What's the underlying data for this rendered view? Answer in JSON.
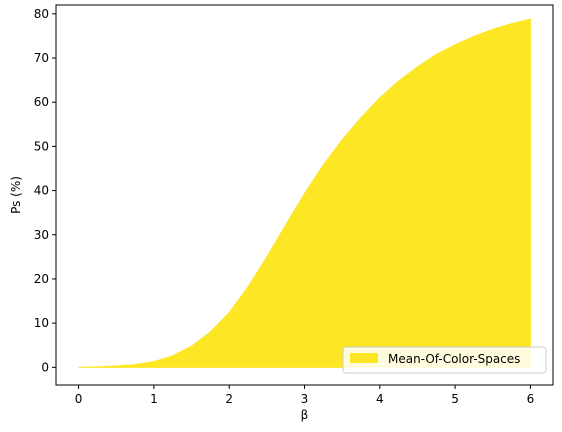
{
  "chart_data": {
    "type": "area",
    "xlabel": "β",
    "ylabel": "Ps (%)",
    "xlim": [
      -0.3,
      6.3
    ],
    "ylim": [
      -4,
      82
    ],
    "xticks": [
      "0",
      "1",
      "2",
      "3",
      "4",
      "5",
      "6"
    ],
    "yticks": [
      "0",
      "10",
      "20",
      "30",
      "40",
      "50",
      "60",
      "70",
      "80"
    ],
    "grid": false,
    "legend_position": "bottom-right",
    "series": [
      {
        "name": "Mean-Of-Color-Spaces",
        "color": "#fde725",
        "x": [
          0,
          0.25,
          0.5,
          0.75,
          1.0,
          1.25,
          1.5,
          1.75,
          2.0,
          2.25,
          2.5,
          2.75,
          3.0,
          3.25,
          3.5,
          3.75,
          4.0,
          4.25,
          4.5,
          4.75,
          5.0,
          5.25,
          5.5,
          5.75,
          6.0
        ],
        "values": [
          0.0,
          0.1,
          0.3,
          0.6,
          1.3,
          2.6,
          4.8,
          8.0,
          12.4,
          18.2,
          25.0,
          32.2,
          39.3,
          45.8,
          51.5,
          56.5,
          61.0,
          64.8,
          68.0,
          70.8,
          73.0,
          74.9,
          76.5,
          77.8,
          78.8
        ]
      }
    ]
  }
}
